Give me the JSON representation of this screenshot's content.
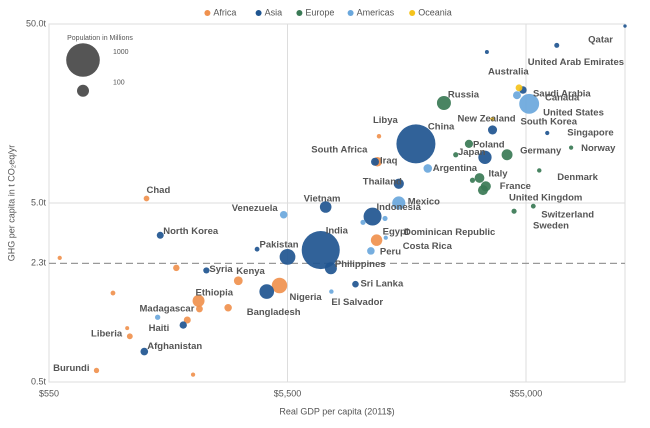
{
  "chart_data": {
    "type": "bubble",
    "x_label": "Real GDP per capita (2011$)",
    "y_label": "GHG per capita in t CO₂eq/yr",
    "xscale": "log",
    "yscale": "log",
    "xlim": [
      550,
      143000
    ],
    "ylim": [
      0.5,
      50
    ],
    "xticks": [
      {
        "value": 550,
        "label": "$550"
      },
      {
        "value": 5500,
        "label": "$5,500"
      },
      {
        "value": 55000,
        "label": "$55,000"
      }
    ],
    "yticks": [
      {
        "value": 50,
        "label": "50.0t"
      },
      {
        "value": 5,
        "label": "5.0t"
      },
      {
        "value": 2.3,
        "label": "2.3t"
      },
      {
        "value": 0.5,
        "label": "0.5t"
      }
    ],
    "reference_line": {
      "y": 2.3,
      "style": "dashed"
    },
    "grid": true,
    "legend": "top",
    "size_legend": {
      "title": "Population in Millions",
      "values": [
        1000,
        100
      ]
    },
    "series": [
      {
        "name": "Africa",
        "color": "#f0914e",
        "labels": [
          "Libya",
          "South Africa",
          "Chad",
          "Egypt",
          "Kenya",
          "Nigeria",
          "Ethiopia",
          "Madagascar",
          "Liberia",
          "Burundi",
          null,
          null,
          null,
          null,
          null,
          null,
          null
        ],
        "x": [
          13300,
          13100,
          1410,
          13000,
          3420,
          5090,
          2330,
          2350,
          1170,
          870,
          610,
          1020,
          1200,
          2090,
          3100,
          2210,
          1880
        ],
        "values": [
          11.8,
          8.5,
          5.3,
          3.1,
          1.84,
          1.73,
          1.42,
          1.28,
          1.0,
          0.58,
          2.47,
          1.57,
          0.9,
          1.11,
          1.3,
          0.55,
          2.17
        ],
        "sizes": [
          6,
          55,
          14,
          90,
          46,
          180,
          100,
          24,
          4,
          11,
          5,
          8,
          15,
          25,
          30,
          5,
          20
        ]
      },
      {
        "name": "Asia",
        "color": "#1f5590",
        "labels": [
          "Qatar",
          "United Arab Emirates",
          "Saudi Arabia",
          "China",
          "South Korea",
          "Singapore",
          "Japan",
          "Iraq",
          "Thailand",
          "Vietnam",
          "Indonesia",
          "North Korea",
          "India",
          "Pakistan",
          "Philippines",
          "Syria",
          "Sri Lanka",
          "Bangladesh",
          "Afghanistan",
          null,
          null,
          null
        ],
        "x": [
          143000,
          74000,
          53400,
          19000,
          39800,
          67500,
          37000,
          12800,
          16100,
          7950,
          12500,
          1610,
          7580,
          5500,
          8360,
          2513,
          10600,
          4500,
          1380,
          2010,
          37700,
          4100
        ],
        "values": [
          48.7,
          38,
          21.4,
          10.7,
          12.8,
          12.3,
          9.0,
          8.5,
          6.4,
          4.75,
          4.2,
          3.3,
          2.73,
          2.5,
          2.16,
          2.1,
          1.76,
          1.6,
          0.74,
          1.04,
          34.9,
          2.76
        ],
        "sizes": [
          2,
          9,
          30,
          1370,
          50,
          5,
          127,
          36,
          68,
          92,
          255,
          25,
          1300,
          190,
          100,
          18,
          21,
          160,
          32,
          28,
          4,
          8
        ]
      },
      {
        "name": "Europe",
        "color": "#3a7a55",
        "labels": [
          "Russia",
          "Poland",
          "Germany",
          "Denmark",
          "Italy",
          "France",
          "United Kingdom",
          "Switzerland",
          "Sweden",
          "Norway",
          null,
          null
        ],
        "x": [
          24900,
          31700,
          45800,
          62500,
          35100,
          37300,
          36300,
          59000,
          49000,
          85000,
          27900,
          32800
        ],
        "values": [
          18.1,
          10.7,
          9.3,
          7.6,
          6.9,
          6.2,
          5.9,
          4.8,
          4.5,
          10.2,
          9.3,
          6.7
        ],
        "sizes": [
          144,
          38,
          80,
          6,
          60,
          66,
          64,
          8,
          10,
          5,
          10,
          10
        ]
      },
      {
        "name": "Americas",
        "color": "#6aa7dc",
        "labels": [
          "Canada",
          "United States",
          "Argentina",
          "Mexico",
          "Venezuela",
          "Dominican Republic",
          "Costa Rica",
          "Peru",
          "El Salvador",
          "Haiti",
          null
        ],
        "x": [
          50400,
          56700,
          21300,
          16100,
          5300,
          14100,
          14200,
          12300,
          8400,
          1570,
          11400
        ],
        "values": [
          20,
          17.9,
          7.8,
          5.0,
          4.3,
          4.1,
          3.2,
          2.7,
          1.6,
          1.15,
          3.9
        ],
        "sizes": [
          35,
          320,
          43,
          125,
          31,
          10,
          5,
          31,
          6,
          11,
          10
        ]
      },
      {
        "name": "Oceania",
        "color": "#f5c31c",
        "labels": [
          "Australia",
          "New Zealand"
        ],
        "x": [
          51400,
          39800
        ],
        "values": [
          22,
          14.7
        ],
        "sizes": [
          23,
          5
        ]
      }
    ]
  }
}
